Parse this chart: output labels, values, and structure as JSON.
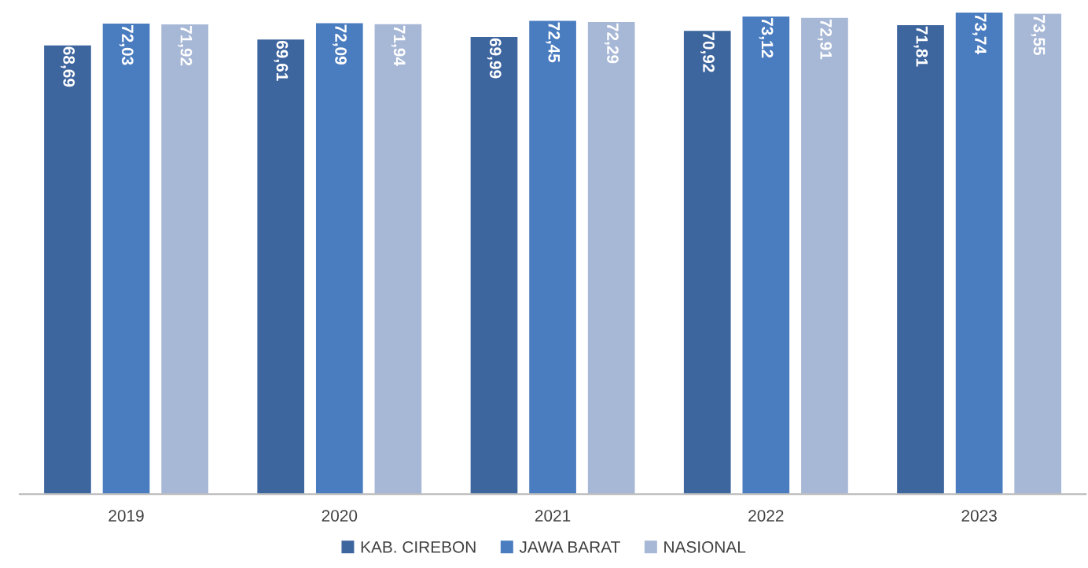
{
  "chart_data": {
    "type": "bar",
    "categories": [
      "2019",
      "2020",
      "2021",
      "2022",
      "2023"
    ],
    "series": [
      {
        "name": "KAB. CIREBON",
        "color": "#3d659e",
        "values": [
          68.69,
          69.61,
          69.99,
          70.92,
          71.81
        ],
        "value_labels": [
          "68,69",
          "69,61",
          "69,99",
          "70,92",
          "71,81"
        ]
      },
      {
        "name": "JAWA BARAT",
        "color": "#4a7cc0",
        "values": [
          72.03,
          72.09,
          72.45,
          73.12,
          73.74
        ],
        "value_labels": [
          "72,03",
          "72,09",
          "72,45",
          "73,12",
          "73,74"
        ]
      },
      {
        "name": "NASIONAL",
        "color": "#a7b7d6",
        "values": [
          71.92,
          71.94,
          72.29,
          72.91,
          73.55
        ],
        "value_labels": [
          "71,92",
          "71,94",
          "72,29",
          "72,91",
          "73,55"
        ]
      }
    ],
    "tick_labels": "x",
    "grid": false,
    "legend": "bottom"
  }
}
